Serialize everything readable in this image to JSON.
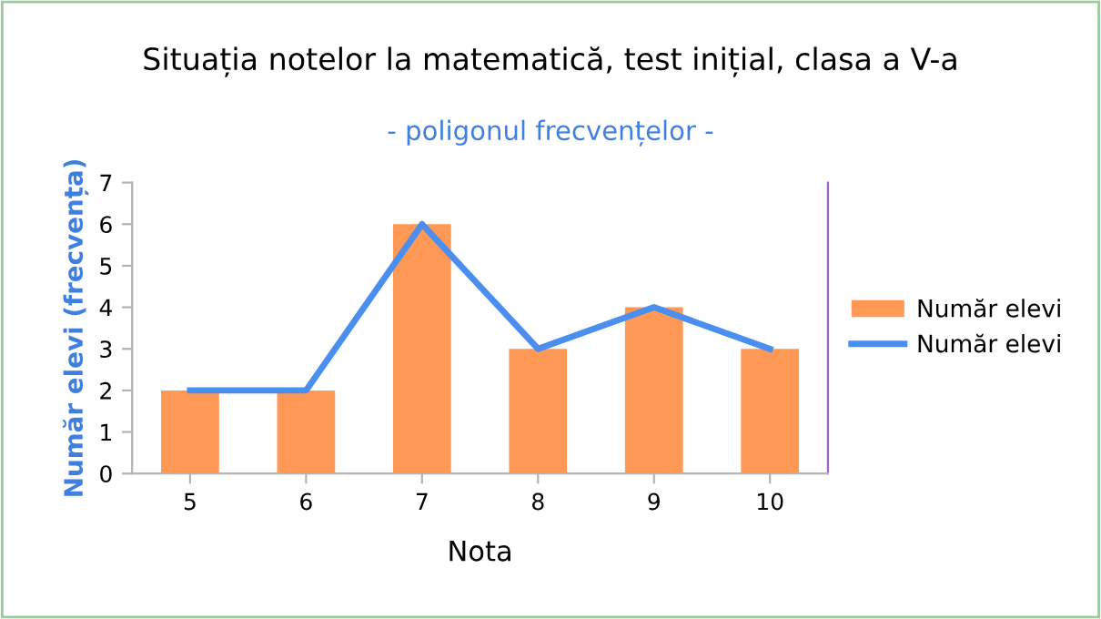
{
  "chart_data": {
    "type": "bar",
    "title": "Situația notelor la matematică, test inițial, clasa a V-a",
    "subtitle": "- poligonul frecvențelor -",
    "xlabel": "Nota",
    "ylabel": "Număr elevi (frecvența)",
    "categories": [
      "5",
      "6",
      "7",
      "8",
      "9",
      "10"
    ],
    "series": [
      {
        "name": "Număr elevi",
        "color": "#ff9955",
        "values": [
          2,
          2,
          6,
          3,
          4,
          3
        ]
      },
      {
        "name": "Număr elevi",
        "type": "line",
        "color": "#4a8ef0",
        "values": [
          2,
          2,
          6,
          3,
          4,
          3
        ]
      }
    ],
    "ylim": [
      0,
      7
    ],
    "yticks": [
      0,
      1,
      2,
      3,
      4,
      5,
      6,
      7
    ],
    "grid": false,
    "legend": "right",
    "marker": "none",
    "line_style": "solid"
  }
}
